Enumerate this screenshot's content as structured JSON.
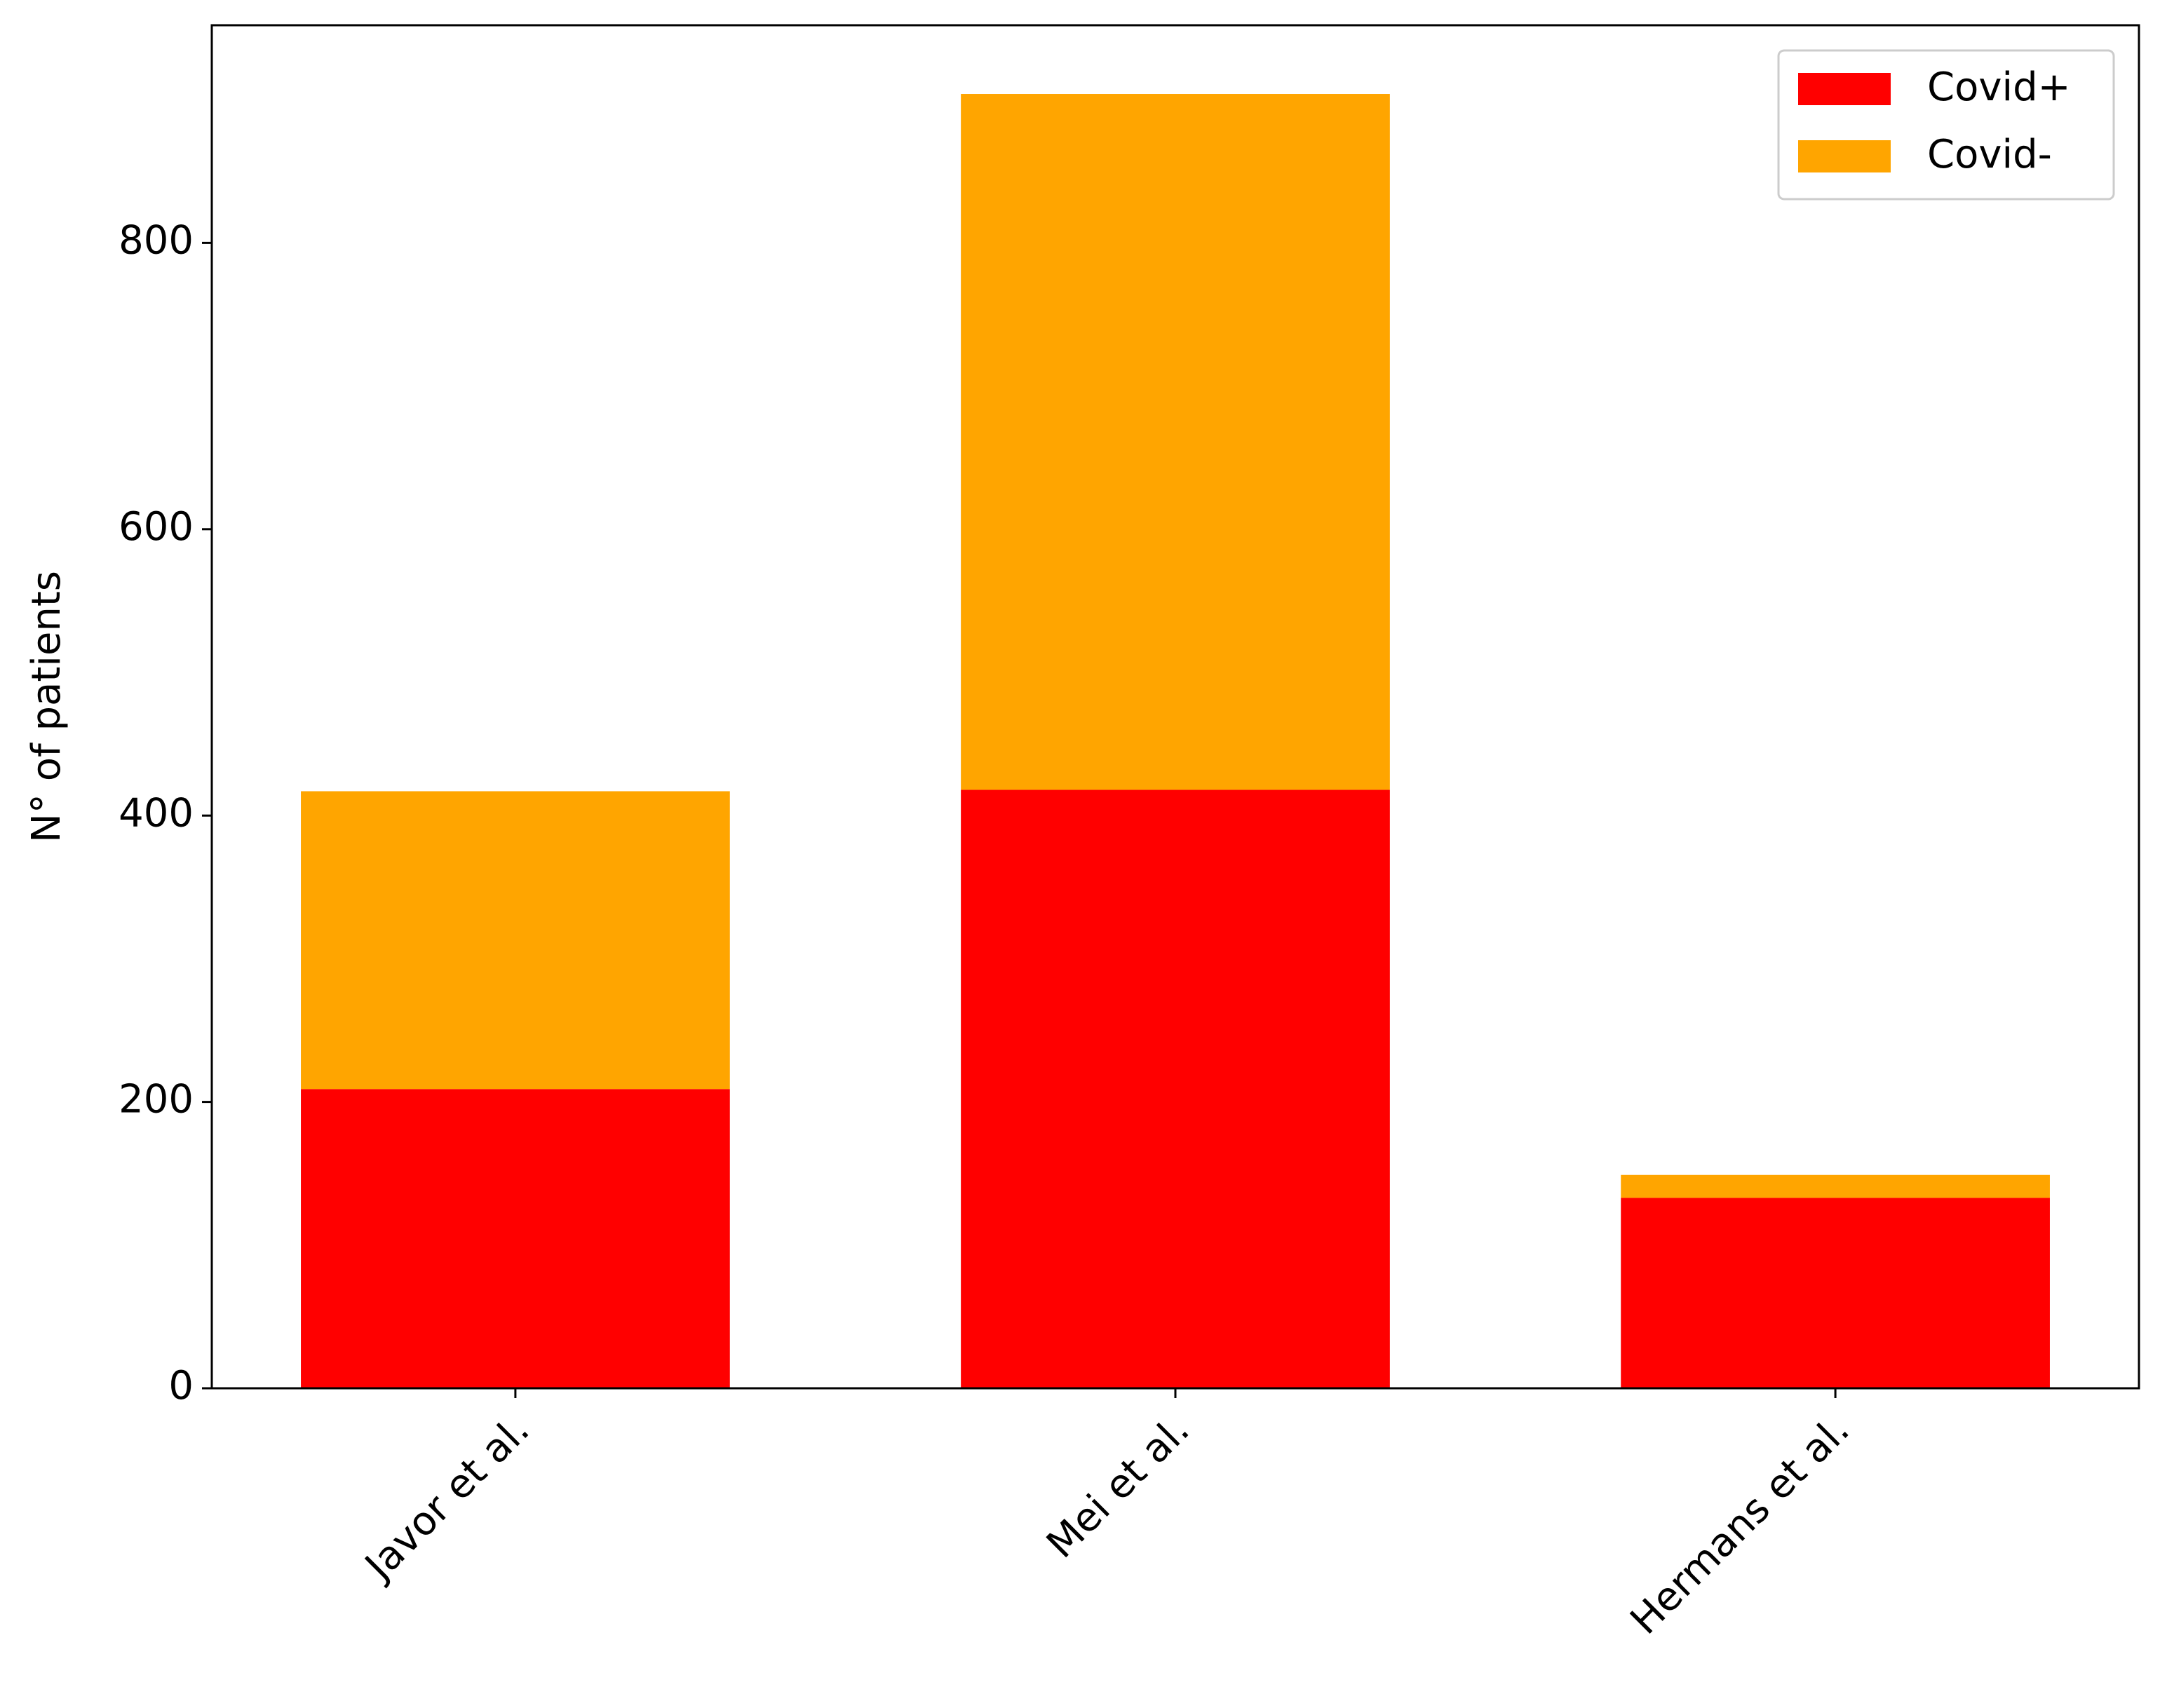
{
  "chart_data": {
    "type": "stacked_bar",
    "y_label": "N° of patients",
    "categories": [
      "Javor et al.",
      "Mei et al.",
      "Hermans et al."
    ],
    "series": [
      {
        "name": "Covid+",
        "color": "#ff0000",
        "values": [
          209,
          418,
          133
        ]
      },
      {
        "name": "Covid-",
        "color": "#ffa500",
        "values": [
          208,
          486,
          16
        ]
      }
    ],
    "ylim": [
      0,
      952
    ],
    "yticks": [
      0,
      200,
      400,
      600,
      800
    ],
    "grid": false,
    "legend": "upper right"
  }
}
